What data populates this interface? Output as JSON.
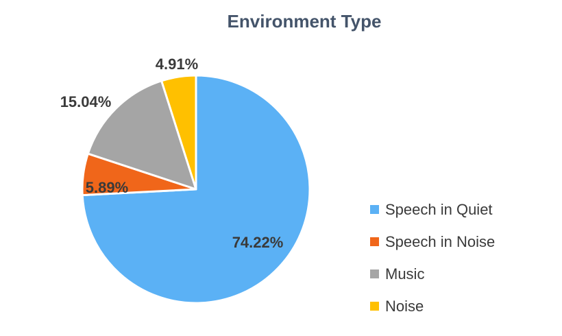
{
  "chart_data": {
    "type": "pie",
    "title": "Environment Type",
    "categories": [
      "Speech in Quiet",
      "Speech in Noise",
      "Music",
      "Noise"
    ],
    "values": [
      74.22,
      5.89,
      15.04,
      4.91
    ],
    "labels": [
      "74.22%",
      "5.89%",
      "15.04%",
      "4.91%"
    ],
    "colors": [
      "#5bb1f5",
      "#f0661a",
      "#a5a5a5",
      "#ffc000"
    ],
    "legend_position": "right",
    "start_angle_deg": 0,
    "direction": "clockwise"
  }
}
